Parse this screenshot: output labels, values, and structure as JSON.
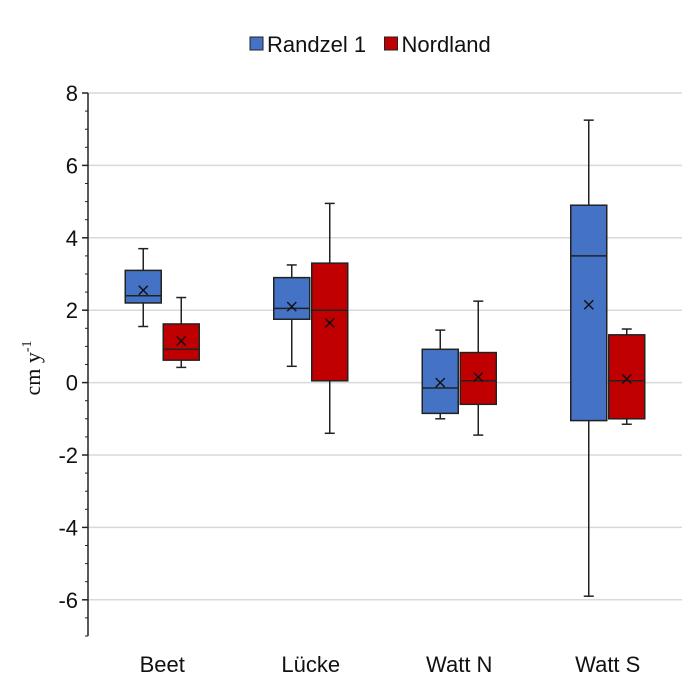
{
  "chart_data": {
    "type": "box",
    "ylabel": "cm y",
    "ylabel_superscript": "-1",
    "ylim": [
      -7,
      8
    ],
    "yticks": [
      -6,
      -4,
      -2,
      0,
      2,
      4,
      6,
      8
    ],
    "grid": "horizontal",
    "legend_position": "top-center",
    "categories": [
      "Beet",
      "Lücke",
      "Watt N",
      "Watt S"
    ],
    "series": [
      {
        "name": "Randzel 1",
        "color": "#4472C4",
        "boxes": [
          {
            "min": 1.55,
            "q1": 2.2,
            "median": 2.4,
            "q3": 3.1,
            "max": 3.7,
            "mean": 2.55
          },
          {
            "min": 0.45,
            "q1": 1.75,
            "median": 2.05,
            "q3": 2.9,
            "max": 3.25,
            "mean": 2.1
          },
          {
            "min": -1.0,
            "q1": -0.85,
            "median": -0.15,
            "q3": 0.92,
            "max": 1.45,
            "mean": 0.0
          },
          {
            "min": -5.9,
            "q1": -1.05,
            "median": 3.5,
            "q3": 4.9,
            "max": 7.25,
            "mean": 2.15
          }
        ]
      },
      {
        "name": "Nordland",
        "color": "#C00000",
        "boxes": [
          {
            "min": 0.42,
            "q1": 0.62,
            "median": 0.92,
            "q3": 1.62,
            "max": 2.35,
            "mean": 1.15
          },
          {
            "min": -1.4,
            "q1": 0.05,
            "median": 2.0,
            "q3": 3.3,
            "max": 4.95,
            "mean": 1.65
          },
          {
            "min": -1.45,
            "q1": -0.6,
            "median": 0.05,
            "q3": 0.83,
            "max": 2.25,
            "mean": 0.15
          },
          {
            "min": -1.15,
            "q1": -1.0,
            "median": 0.05,
            "q3": 1.32,
            "max": 1.48,
            "mean": 0.1
          }
        ]
      }
    ]
  }
}
